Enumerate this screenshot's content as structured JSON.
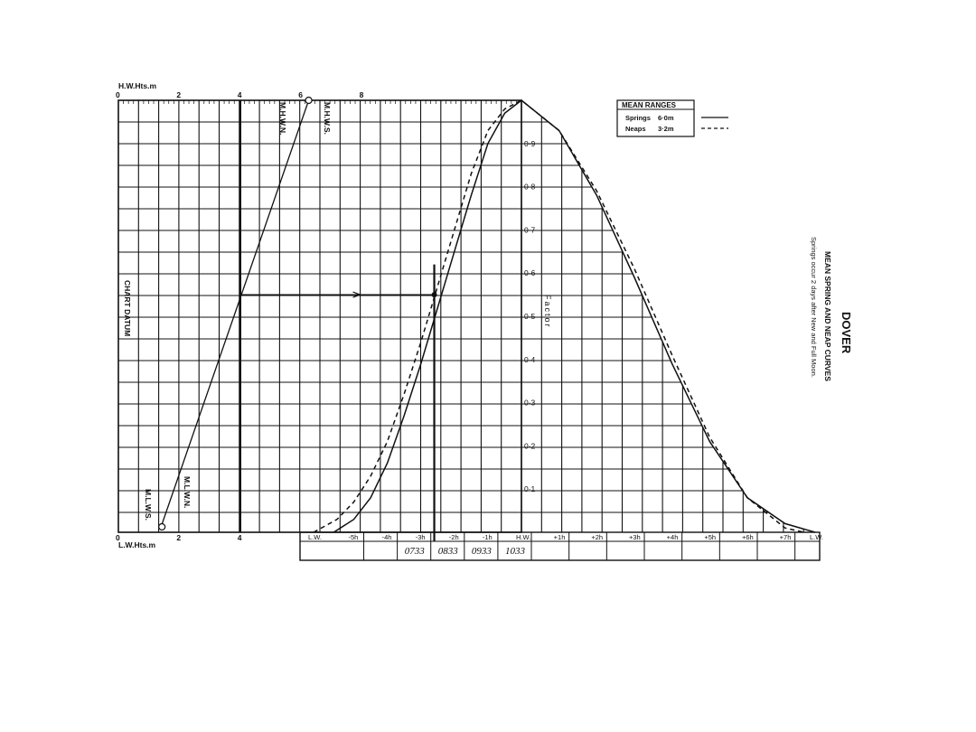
{
  "chart_data": {
    "type": "line",
    "title": "DOVER",
    "subtitle": "MEAN SPRING AND NEAP CURVES",
    "note": "Springs occur 2 days after New and Full Moon.",
    "factor_label": "Factor",
    "factor_ticks": [
      "0·1",
      "0·2",
      "0·3",
      "0·4",
      "0·5",
      "0·6",
      "0·7",
      "0·8",
      "0·9"
    ],
    "factor_values": [
      0.1,
      0.2,
      0.3,
      0.4,
      0.5,
      0.6,
      0.7,
      0.8,
      0.9
    ],
    "time_ticks": [
      "L.W.",
      "-5h",
      "-4h",
      "-3h",
      "-2h",
      "-1h",
      "H.W.",
      "+1h",
      "+2h",
      "+3h",
      "+4h",
      "+5h",
      "+6h",
      "+7h",
      "L.W."
    ],
    "time_values": [
      -6.2,
      -5,
      -4,
      -3,
      -2,
      -1,
      0,
      1,
      2,
      3,
      4,
      5,
      6,
      7,
      7.8
    ],
    "hw_axis": {
      "label": "H.W.Hts.m",
      "ticks": [
        "0",
        "2",
        "4",
        "6",
        "8"
      ],
      "values": [
        0,
        2,
        4,
        6,
        8
      ]
    },
    "lw_axis": {
      "label": "L.W.Hts.m",
      "ticks": [
        "0",
        "2",
        "4"
      ],
      "values": [
        0,
        2,
        4
      ]
    },
    "level_labels": {
      "mhws": "M.H.W.S.",
      "mhwn": "M.H.W.N.",
      "mlws": "M.L.W.S.",
      "mlwn": "M.L.W.N.",
      "chart_datum": "CHART DATUM"
    },
    "legend": {
      "title": "MEAN RANGES",
      "items": [
        {
          "name": "Springs",
          "value": "6·0m",
          "style": "solid"
        },
        {
          "name": "Neaps",
          "value": "3·2m",
          "style": "dashed"
        }
      ]
    },
    "time_entries": [
      "0733",
      "0833",
      "0933",
      "1033"
    ],
    "series": [
      {
        "name": "Springs",
        "style": "solid",
        "x": [
          -5.6,
          -5,
          -4.5,
          -4,
          -3.5,
          -3,
          -2.5,
          -2,
          -1.5,
          -1,
          -0.5,
          0,
          1,
          2,
          3,
          4,
          5,
          6,
          7,
          7.8
        ],
        "y": [
          0,
          0.03,
          0.08,
          0.16,
          0.27,
          0.39,
          0.52,
          0.65,
          0.78,
          0.9,
          0.97,
          1,
          0.93,
          0.78,
          0.59,
          0.39,
          0.21,
          0.08,
          0.02,
          0
        ]
      },
      {
        "name": "Neaps",
        "style": "dashed",
        "x": [
          -6.2,
          -5.5,
          -5,
          -4.5,
          -4,
          -3.5,
          -3,
          -2.5,
          -2,
          -1.5,
          -1,
          -0.5,
          0,
          1,
          2,
          3,
          4,
          5,
          6,
          7,
          7.5
        ],
        "y": [
          0,
          0.03,
          0.07,
          0.13,
          0.21,
          0.32,
          0.44,
          0.57,
          0.7,
          0.83,
          0.93,
          0.98,
          1,
          0.93,
          0.79,
          0.61,
          0.41,
          0.22,
          0.08,
          0.01,
          0
        ]
      }
    ],
    "example": {
      "hw_height": 6.1,
      "lw_height": 1.4,
      "height": 4,
      "factor": 0.55,
      "time": -2.6
    }
  }
}
